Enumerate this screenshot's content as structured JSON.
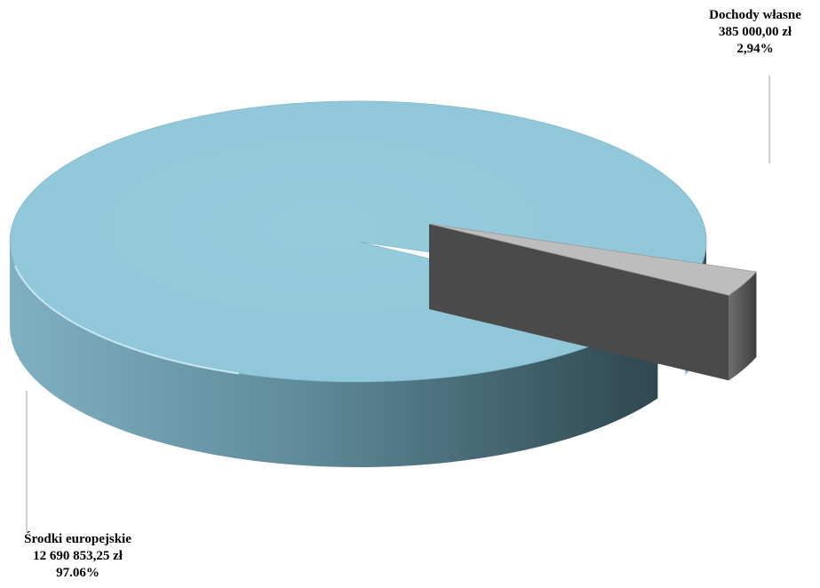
{
  "chart_data": {
    "type": "pie",
    "title": "",
    "slices": [
      {
        "name": "Środki europejskie",
        "value": 12690853.25,
        "value_label": "12 690 853,25 zł",
        "percent": 97.06,
        "percent_label": "97.06%",
        "color": "#92c9da"
      },
      {
        "name": "Dochody własne",
        "value": 385000.0,
        "value_label": "385 000,00 zł",
        "percent": 2.94,
        "percent_label": "2,94%",
        "color": "#bdbdbd"
      }
    ],
    "exploded_slice": "Dochody własne",
    "style": "3d",
    "legend": "none"
  }
}
